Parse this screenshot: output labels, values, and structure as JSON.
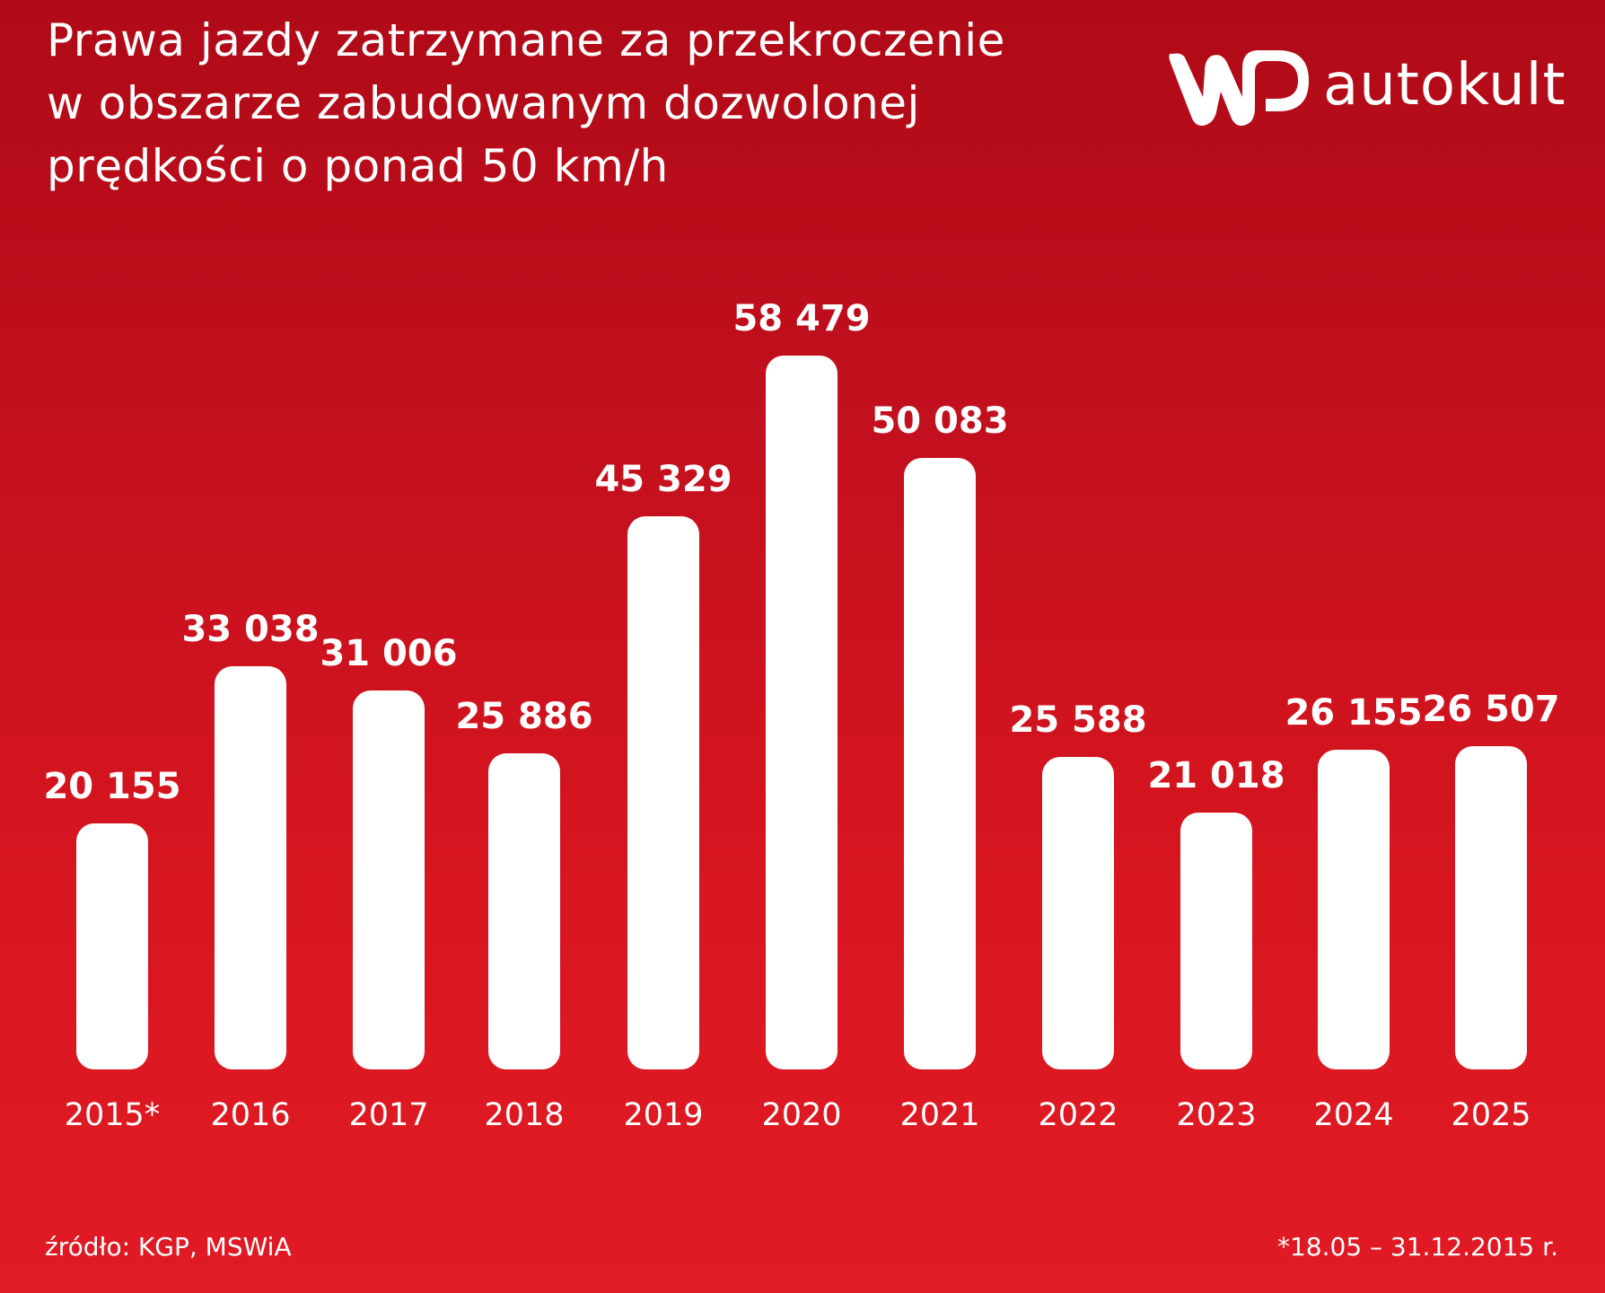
{
  "title": {
    "lines": [
      "Prawa jazdy zatrzymane za przekroczenie",
      "w obszarze zabudowanym dozwolonej",
      "prędkości o ponad 50 km/h"
    ]
  },
  "logo": {
    "mark": "WP",
    "text": "autokult"
  },
  "chart_data": {
    "type": "bar",
    "title": "Prawa jazdy zatrzymane za przekroczenie w obszarze zabudowanym dozwolonej prędkości o ponad 50 km/h",
    "categories": [
      "2015*",
      "2016",
      "2017",
      "2018",
      "2019",
      "2020",
      "2021",
      "2022",
      "2023",
      "2024",
      "2025"
    ],
    "values": [
      20155,
      33038,
      31006,
      25886,
      45329,
      58479,
      50083,
      25588,
      21018,
      26155,
      26507
    ],
    "value_labels": [
      "20 155",
      "33 038",
      "31 006",
      "25 886",
      "45 329",
      "58 479",
      "50 083",
      "25 588",
      "21 018",
      "26 155",
      "26 507"
    ],
    "xlabel": "",
    "ylabel": "",
    "grid": false,
    "legend": null,
    "bar_color": "#ffffff",
    "background": "#c8101e"
  },
  "footer": {
    "source": "źródło: KGP, MSWiA",
    "footnote": "*18.05 – 31.12.2015 r."
  }
}
